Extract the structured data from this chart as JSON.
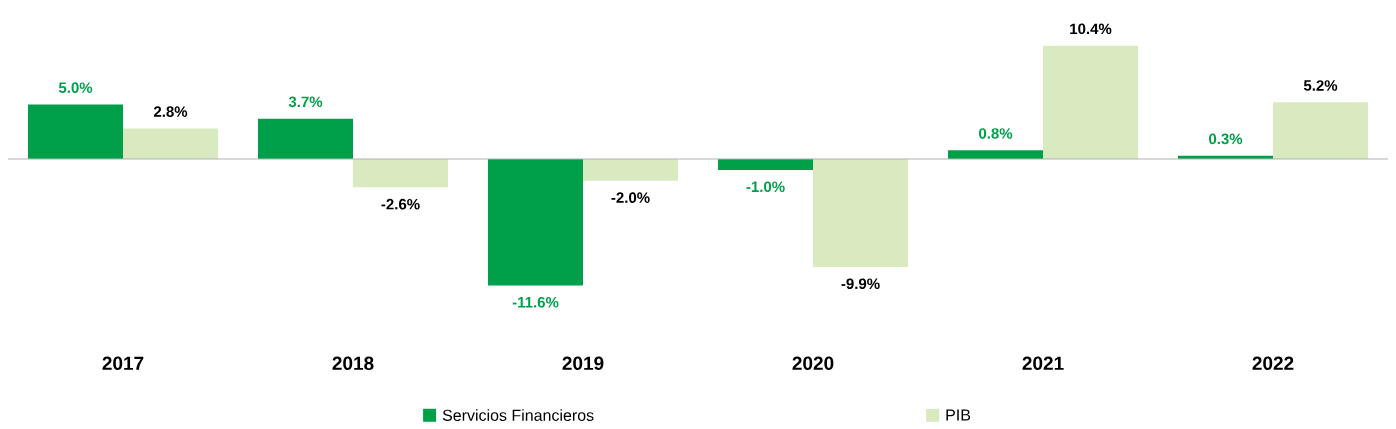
{
  "chart_data": {
    "type": "bar",
    "categories": [
      "2017",
      "2018",
      "2019",
      "2020",
      "2021",
      "2022"
    ],
    "series": [
      {
        "name": "Servicios Financieros",
        "color": "#00a04a",
        "values": [
          5.0,
          3.7,
          -11.6,
          -1.0,
          0.8,
          0.3
        ],
        "value_labels": [
          "5.0%",
          "3.7%",
          "-11.6%",
          "-1.0%",
          "0.8%",
          "0.3%"
        ]
      },
      {
        "name": "PIB",
        "color": "#d9eac0",
        "values": [
          2.8,
          -2.6,
          -2.0,
          -9.9,
          10.4,
          5.2
        ],
        "value_labels": [
          "2.8%",
          "-2.6%",
          "-2.0%",
          "-9.9%",
          "10.4%",
          "5.2%"
        ]
      }
    ],
    "legend": "bottom"
  }
}
